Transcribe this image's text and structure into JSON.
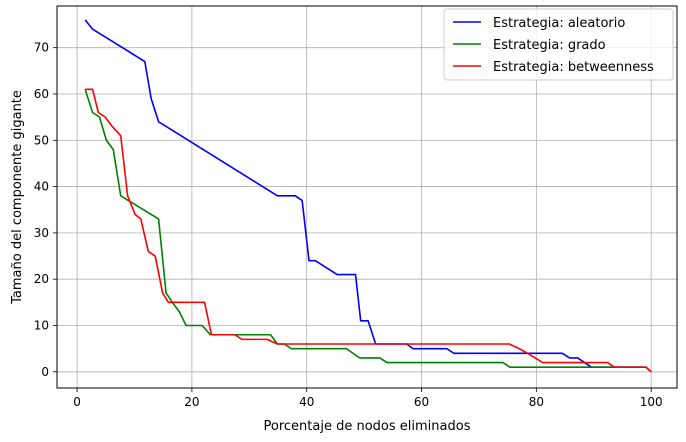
{
  "chart_data": {
    "type": "line",
    "title": "",
    "xlabel": "Porcentaje de nodos eliminados",
    "ylabel": "Tamaño del componente gigante",
    "xlim": [
      -3.5,
      104.5
    ],
    "ylim": [
      -3.5,
      79
    ],
    "xticks": [
      0,
      20,
      40,
      60,
      80,
      100
    ],
    "yticks": [
      0,
      10,
      20,
      30,
      40,
      50,
      60,
      70
    ],
    "grid": true,
    "legend_position": "top-right",
    "series": [
      {
        "name": "Estrategia: aleatorio",
        "color": "#0000ff",
        "x": [
          1.4,
          2.7,
          11.8,
          12.9,
          14.2,
          34.9,
          37.5,
          38.0,
          39.2,
          40.4,
          41.5,
          45.3,
          48.5,
          49.4,
          50.7,
          52.0,
          57.4,
          58.5,
          64.4,
          65.6,
          83.3,
          84.5,
          85.8,
          87.2,
          88.4,
          89.6,
          90.6,
          91.7,
          92.9,
          94.1,
          99.1,
          100.0
        ],
        "y": [
          76,
          74,
          67,
          59,
          54,
          38,
          38,
          38,
          37,
          24,
          24,
          21,
          21,
          11,
          11,
          6,
          6,
          5,
          5,
          4,
          4,
          4,
          3,
          3,
          2,
          1,
          1,
          1,
          1,
          1,
          1,
          0
        ]
      },
      {
        "name": "Estrategia: grado",
        "color": "#008000",
        "x": [
          1.4,
          2.7,
          3.9,
          5.1,
          6.3,
          7.6,
          14.2,
          15.5,
          16.6,
          17.8,
          19.0,
          21.8,
          23.2,
          24.4,
          33.7,
          34.9,
          36.1,
          37.3,
          38.5,
          46.9,
          49.2,
          50.4,
          52.7,
          54.0,
          74.2,
          75.4,
          84.7,
          88.5,
          99.1,
          100.0
        ],
        "y": [
          61,
          56,
          55,
          50,
          48,
          38,
          33,
          17,
          15,
          13,
          10,
          10,
          8,
          8,
          8,
          6,
          6,
          5,
          5,
          5,
          3,
          3,
          3,
          2,
          2,
          1,
          1,
          1,
          1,
          0
        ]
      },
      {
        "name": "Estrategia: betweenness",
        "color": "#ff0000",
        "x": [
          1.4,
          2.7,
          3.7,
          4.9,
          6.1,
          7.6,
          8.8,
          10.1,
          11.1,
          12.4,
          13.6,
          14.9,
          15.9,
          17.1,
          18.4,
          22.2,
          23.4,
          27.5,
          28.7,
          33.1,
          34.9,
          36.1,
          75.3,
          77.0,
          78.5,
          79.8,
          81.1,
          82.3,
          88.6,
          92.4,
          93.6,
          99.1,
          100.0
        ],
        "y": [
          61,
          61,
          56,
          55,
          53,
          51,
          38,
          34,
          33,
          26,
          25,
          17,
          15,
          15,
          15,
          15,
          8,
          8,
          7,
          7,
          6,
          6,
          6,
          5,
          4,
          3,
          2,
          2,
          2,
          2,
          1,
          1,
          0
        ]
      }
    ]
  }
}
